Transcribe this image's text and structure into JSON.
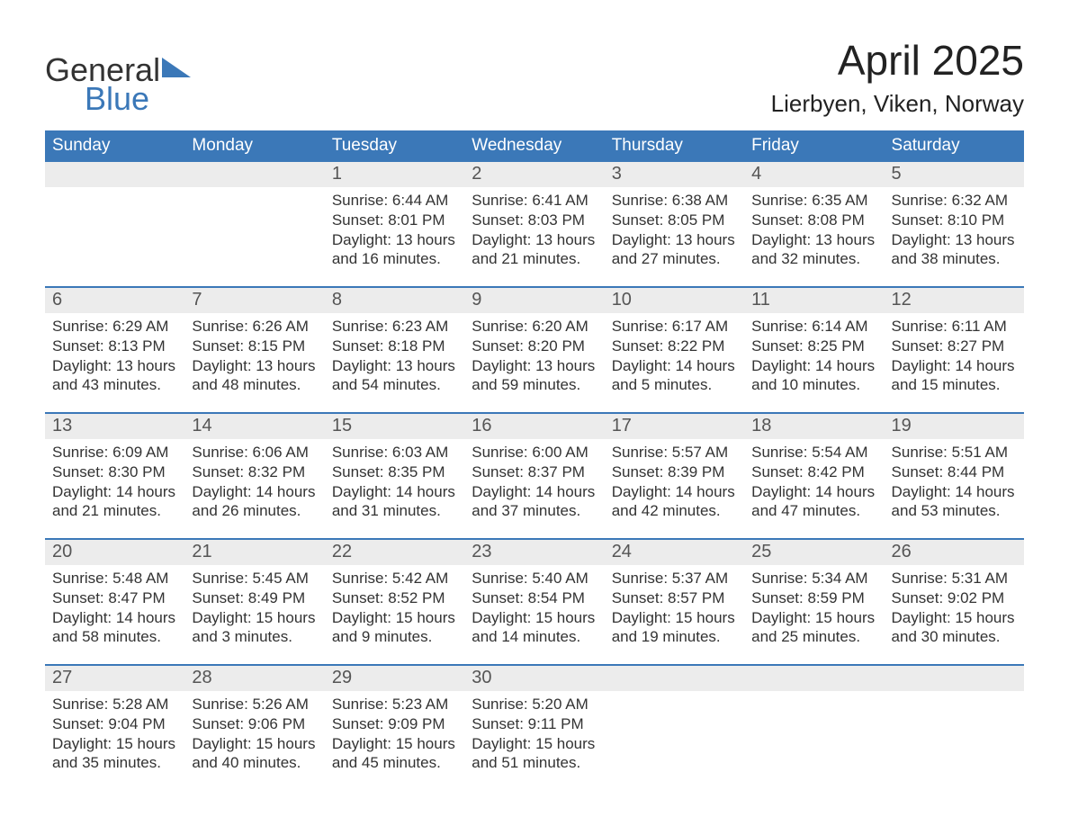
{
  "logo": {
    "word1": "General",
    "word2": "Blue",
    "accent_color": "#3b78b8"
  },
  "title": "April 2025",
  "location": "Lierbyen, Viken, Norway",
  "colors": {
    "header_bg": "#3b78b8",
    "header_text": "#ffffff",
    "daynum_bg": "#ececec",
    "daynum_text": "#555555",
    "body_text": "#333333",
    "page_bg": "#ffffff",
    "week_divider": "#3b78b8"
  },
  "typography": {
    "title_fontsize": 46,
    "location_fontsize": 26,
    "dayheader_fontsize": 19,
    "daynum_fontsize": 20,
    "body_fontsize": 17
  },
  "day_headers": [
    "Sunday",
    "Monday",
    "Tuesday",
    "Wednesday",
    "Thursday",
    "Friday",
    "Saturday"
  ],
  "weeks": [
    [
      null,
      null,
      {
        "n": "1",
        "sunrise": "6:44 AM",
        "sunset": "8:01 PM",
        "daylight": "13 hours and 16 minutes."
      },
      {
        "n": "2",
        "sunrise": "6:41 AM",
        "sunset": "8:03 PM",
        "daylight": "13 hours and 21 minutes."
      },
      {
        "n": "3",
        "sunrise": "6:38 AM",
        "sunset": "8:05 PM",
        "daylight": "13 hours and 27 minutes."
      },
      {
        "n": "4",
        "sunrise": "6:35 AM",
        "sunset": "8:08 PM",
        "daylight": "13 hours and 32 minutes."
      },
      {
        "n": "5",
        "sunrise": "6:32 AM",
        "sunset": "8:10 PM",
        "daylight": "13 hours and 38 minutes."
      }
    ],
    [
      {
        "n": "6",
        "sunrise": "6:29 AM",
        "sunset": "8:13 PM",
        "daylight": "13 hours and 43 minutes."
      },
      {
        "n": "7",
        "sunrise": "6:26 AM",
        "sunset": "8:15 PM",
        "daylight": "13 hours and 48 minutes."
      },
      {
        "n": "8",
        "sunrise": "6:23 AM",
        "sunset": "8:18 PM",
        "daylight": "13 hours and 54 minutes."
      },
      {
        "n": "9",
        "sunrise": "6:20 AM",
        "sunset": "8:20 PM",
        "daylight": "13 hours and 59 minutes."
      },
      {
        "n": "10",
        "sunrise": "6:17 AM",
        "sunset": "8:22 PM",
        "daylight": "14 hours and 5 minutes."
      },
      {
        "n": "11",
        "sunrise": "6:14 AM",
        "sunset": "8:25 PM",
        "daylight": "14 hours and 10 minutes."
      },
      {
        "n": "12",
        "sunrise": "6:11 AM",
        "sunset": "8:27 PM",
        "daylight": "14 hours and 15 minutes."
      }
    ],
    [
      {
        "n": "13",
        "sunrise": "6:09 AM",
        "sunset": "8:30 PM",
        "daylight": "14 hours and 21 minutes."
      },
      {
        "n": "14",
        "sunrise": "6:06 AM",
        "sunset": "8:32 PM",
        "daylight": "14 hours and 26 minutes."
      },
      {
        "n": "15",
        "sunrise": "6:03 AM",
        "sunset": "8:35 PM",
        "daylight": "14 hours and 31 minutes."
      },
      {
        "n": "16",
        "sunrise": "6:00 AM",
        "sunset": "8:37 PM",
        "daylight": "14 hours and 37 minutes."
      },
      {
        "n": "17",
        "sunrise": "5:57 AM",
        "sunset": "8:39 PM",
        "daylight": "14 hours and 42 minutes."
      },
      {
        "n": "18",
        "sunrise": "5:54 AM",
        "sunset": "8:42 PM",
        "daylight": "14 hours and 47 minutes."
      },
      {
        "n": "19",
        "sunrise": "5:51 AM",
        "sunset": "8:44 PM",
        "daylight": "14 hours and 53 minutes."
      }
    ],
    [
      {
        "n": "20",
        "sunrise": "5:48 AM",
        "sunset": "8:47 PM",
        "daylight": "14 hours and 58 minutes."
      },
      {
        "n": "21",
        "sunrise": "5:45 AM",
        "sunset": "8:49 PM",
        "daylight": "15 hours and 3 minutes."
      },
      {
        "n": "22",
        "sunrise": "5:42 AM",
        "sunset": "8:52 PM",
        "daylight": "15 hours and 9 minutes."
      },
      {
        "n": "23",
        "sunrise": "5:40 AM",
        "sunset": "8:54 PM",
        "daylight": "15 hours and 14 minutes."
      },
      {
        "n": "24",
        "sunrise": "5:37 AM",
        "sunset": "8:57 PM",
        "daylight": "15 hours and 19 minutes."
      },
      {
        "n": "25",
        "sunrise": "5:34 AM",
        "sunset": "8:59 PM",
        "daylight": "15 hours and 25 minutes."
      },
      {
        "n": "26",
        "sunrise": "5:31 AM",
        "sunset": "9:02 PM",
        "daylight": "15 hours and 30 minutes."
      }
    ],
    [
      {
        "n": "27",
        "sunrise": "5:28 AM",
        "sunset": "9:04 PM",
        "daylight": "15 hours and 35 minutes."
      },
      {
        "n": "28",
        "sunrise": "5:26 AM",
        "sunset": "9:06 PM",
        "daylight": "15 hours and 40 minutes."
      },
      {
        "n": "29",
        "sunrise": "5:23 AM",
        "sunset": "9:09 PM",
        "daylight": "15 hours and 45 minutes."
      },
      {
        "n": "30",
        "sunrise": "5:20 AM",
        "sunset": "9:11 PM",
        "daylight": "15 hours and 51 minutes."
      },
      null,
      null,
      null
    ]
  ],
  "labels": {
    "sunrise": "Sunrise:",
    "sunset": "Sunset:",
    "daylight": "Daylight:"
  }
}
